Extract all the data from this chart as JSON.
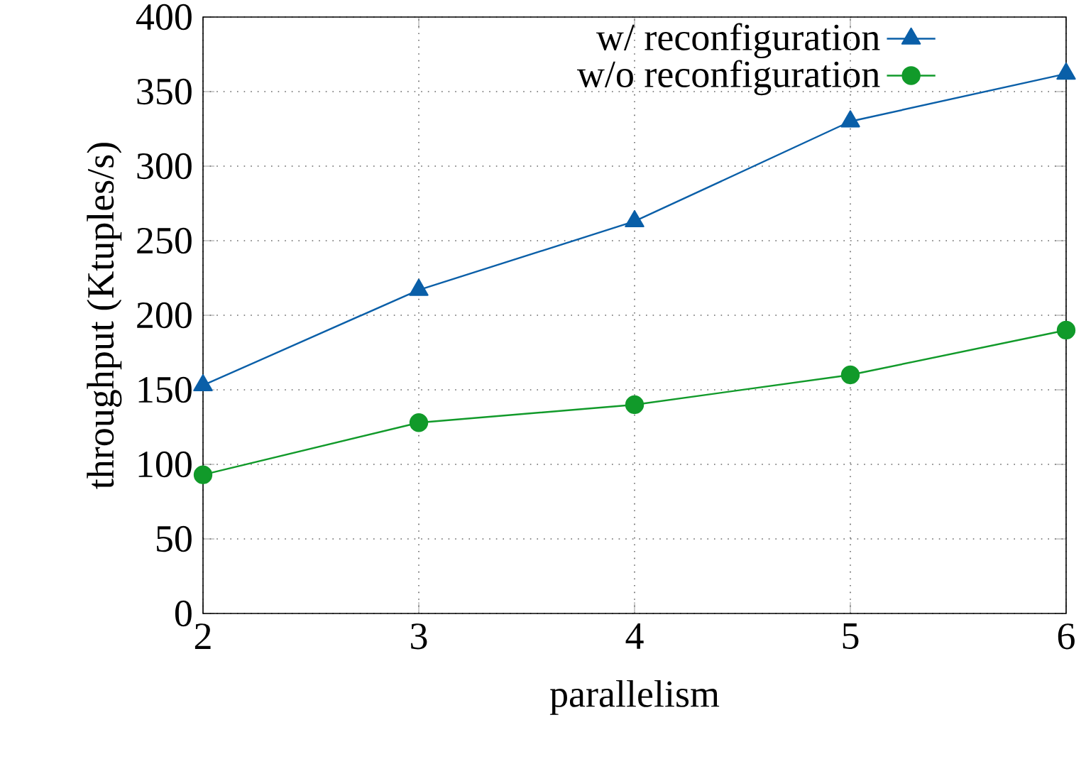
{
  "chart_data": {
    "type": "line",
    "xlabel": "parallelism",
    "ylabel": "throughput (Ktuples/s)",
    "x": [
      2,
      3,
      4,
      5,
      6
    ],
    "xlim": [
      2,
      6
    ],
    "xticks": [
      2,
      3,
      4,
      5,
      6
    ],
    "ylim": [
      0,
      400
    ],
    "yticks": [
      0,
      50,
      100,
      150,
      200,
      250,
      300,
      350,
      400
    ],
    "grid": true,
    "legend": "top right",
    "line_style": "solid",
    "series": [
      {
        "name": "w/ reconfiguration",
        "color": "#0a5fa8",
        "marker": "triangle",
        "values": [
          153,
          217,
          263,
          330,
          362
        ]
      },
      {
        "name": "w/o reconfiguration",
        "color": "#119a2a",
        "marker": "circle",
        "values": [
          93,
          128,
          140,
          160,
          190
        ]
      }
    ]
  }
}
